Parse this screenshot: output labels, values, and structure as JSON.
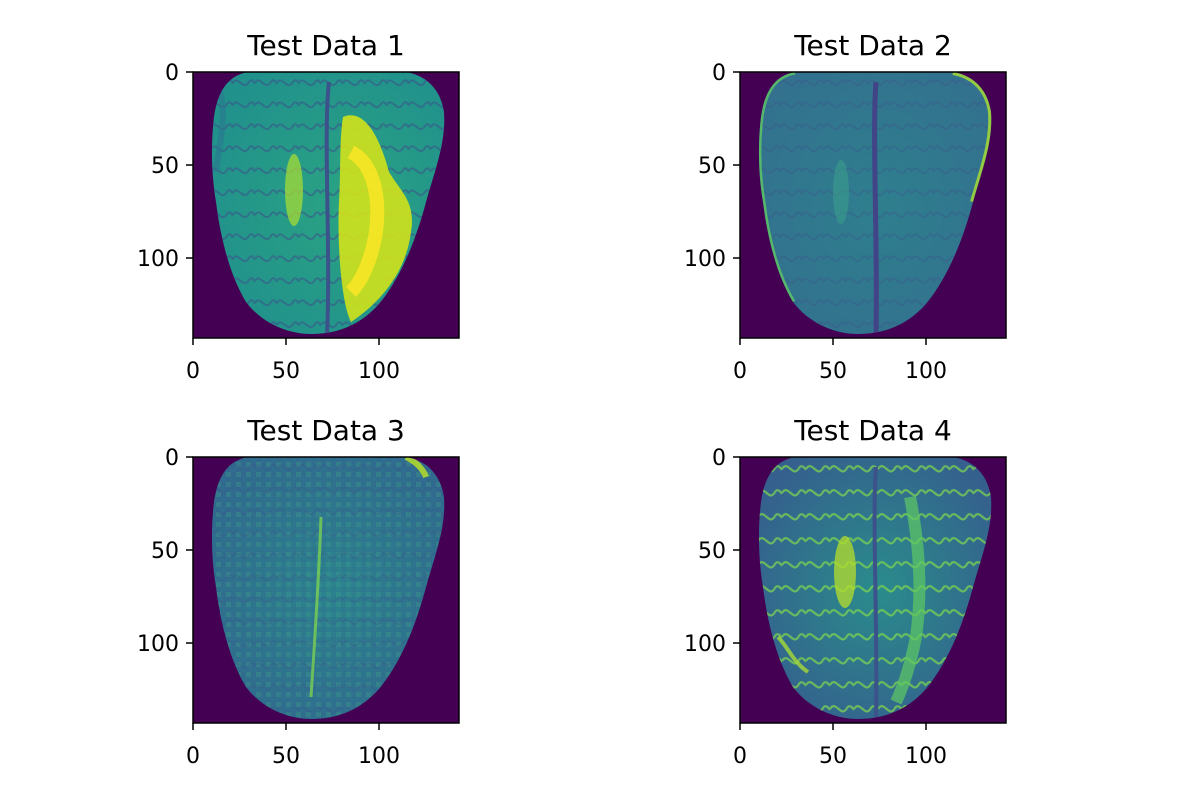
{
  "figure": {
    "background": "#ffffff",
    "colormap": "viridis",
    "image_background_color": "#440154",
    "panels": [
      {
        "title": "Test Data 1",
        "xticks": [
          "0",
          "50",
          "100"
        ],
        "yticks": [
          "0",
          "50",
          "100"
        ],
        "x_range": [
          0,
          143
        ],
        "y_range": [
          143,
          0
        ],
        "content": "brain MRI axial slice, bright yellow hyperintense region in right hemisphere"
      },
      {
        "title": "Test Data 2",
        "xticks": [
          "0",
          "50",
          "100"
        ],
        "yticks": [
          "0",
          "50",
          "100"
        ],
        "x_range": [
          0,
          143
        ],
        "y_range": [
          143,
          0
        ],
        "content": "brain MRI axial slice, low-contrast teal appearance with bright rim"
      },
      {
        "title": "Test Data 3",
        "xticks": [
          "0",
          "50",
          "100"
        ],
        "yticks": [
          "0",
          "50",
          "100"
        ],
        "x_range": [
          0,
          143
        ],
        "y_range": [
          143,
          0
        ],
        "content": "brain MRI axial slice, noisy mottled texture with bright midline"
      },
      {
        "title": "Test Data 4",
        "xticks": [
          "0",
          "50",
          "100"
        ],
        "yticks": [
          "0",
          "50",
          "100"
        ],
        "x_range": [
          0,
          143
        ],
        "y_range": [
          143,
          0
        ],
        "content": "brain MRI axial slice, bright cortical sulci outlines and central bright lesion"
      }
    ]
  }
}
